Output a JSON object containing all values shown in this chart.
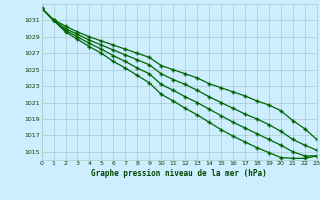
{
  "title": "Graphe pression niveau de la mer (hPa)",
  "background_color": "#cceeff",
  "grid_color": "#aacccc",
  "text_color": "#004400",
  "line_color": "#006600",
  "xlim": [
    0,
    23
  ],
  "ylim": [
    1014,
    1033
  ],
  "xtick_labels": [
    "0",
    "1",
    "2",
    "3",
    "4",
    "5",
    "6",
    "7",
    "8",
    "9",
    "10",
    "11",
    "12",
    "13",
    "14",
    "15",
    "16",
    "17",
    "18",
    "19",
    "20",
    "21",
    "22",
    "23"
  ],
  "yticks": [
    1015,
    1017,
    1019,
    1021,
    1023,
    1025,
    1027,
    1029,
    1031
  ],
  "series": [
    [
      1032.5,
      1031.1,
      1030.3,
      1029.6,
      1029.0,
      1028.5,
      1028.0,
      1027.5,
      1027.0,
      1026.5,
      1025.5,
      1025.0,
      1024.5,
      1024.0,
      1023.3,
      1022.8,
      1022.3,
      1021.8,
      1021.2,
      1020.7,
      1020.0,
      1018.8,
      1017.8,
      1016.5
    ],
    [
      1032.5,
      1031.0,
      1030.0,
      1029.3,
      1028.6,
      1028.0,
      1027.4,
      1026.8,
      1026.2,
      1025.6,
      1024.5,
      1023.8,
      1023.2,
      1022.5,
      1021.7,
      1021.0,
      1020.3,
      1019.6,
      1019.0,
      1018.3,
      1017.5,
      1016.5,
      1015.8,
      1015.2
    ],
    [
      1032.5,
      1031.0,
      1029.8,
      1029.0,
      1028.2,
      1027.5,
      1026.7,
      1026.0,
      1025.2,
      1024.5,
      1023.2,
      1022.5,
      1021.7,
      1021.0,
      1020.2,
      1019.4,
      1018.6,
      1017.9,
      1017.2,
      1016.5,
      1015.8,
      1015.0,
      1014.5,
      1014.5
    ],
    [
      1032.5,
      1031.0,
      1029.6,
      1028.7,
      1027.8,
      1027.0,
      1026.0,
      1025.2,
      1024.3,
      1023.4,
      1022.0,
      1021.2,
      1020.3,
      1019.5,
      1018.6,
      1017.7,
      1016.9,
      1016.2,
      1015.5,
      1014.9,
      1014.3,
      1014.2,
      1014.2,
      1014.5
    ]
  ]
}
